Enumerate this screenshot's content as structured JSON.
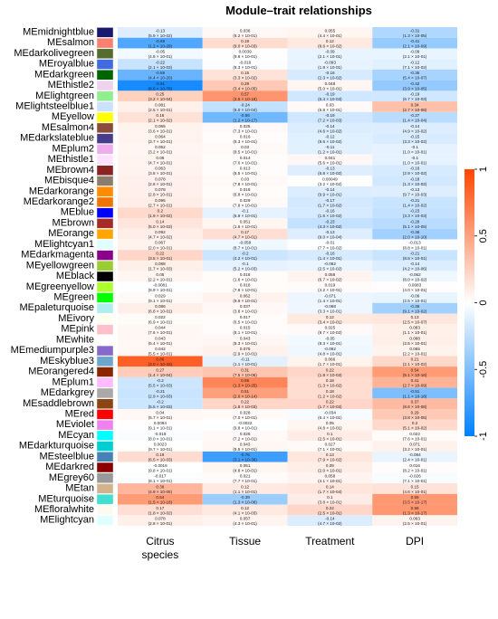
{
  "chart_data": {
    "type": "heatmap",
    "title": "Module–trait relationships",
    "traits": [
      "Citrus\nspecies",
      "Tissue",
      "Treatment",
      "DPI"
    ],
    "modules": [
      {
        "name": "MEmidnightblue",
        "color": "#191970",
        "values": [
          -0.13,
          0.036,
          0.055,
          -0.31
        ],
        "p": [
          "(5.9 × 10^-02)",
          "(6.2 × 10^-01)",
          "(4.4 × 10^-01)",
          "(1.3 × 10^-05)"
        ]
      },
      {
        "name": "MEsalmon",
        "color": "#FA8072",
        "values": [
          -0.69,
          0.19,
          0.12,
          -0.41
        ],
        "p": [
          "(1.2 × 10^-29)",
          "(9.0 × 10^-03)",
          "(8.6 × 10^-02)",
          "(2.1 × 10^-09)"
        ]
      },
      {
        "name": "MEdarkolivegreen",
        "color": "#556B2F",
        "values": [
          -0.05,
          0.0039,
          -0.09,
          -0.09
        ],
        "p": [
          "(4.8 × 10^-01)",
          "(9.6 × 10^-01)",
          "(2.1 × 10^-01)",
          "(2.1 × 10^-01)"
        ]
      },
      {
        "name": "MEroyalblue",
        "color": "#4169E1",
        "values": [
          -0.22,
          -0.016,
          -0.093,
          -0.12
        ],
        "p": [
          "(2.1 × 10^-03)",
          "(8.3 × 10^-01)",
          "(1.9 × 10^-01)",
          "(7.1 × 10^-02)"
        ]
      },
      {
        "name": "MEdarkgreen",
        "color": "#006400",
        "values": [
          -0.59,
          0.15,
          -0.16,
          -0.35
        ],
        "p": [
          "(4.4 × 10^-20)",
          "(3.3 × 10^-02)",
          "(2.3 × 10^-02)",
          "(5.4 × 10^-07)"
        ]
      },
      {
        "name": "MEthistle2",
        "color": "#EED2EE",
        "values": [
          -0.91,
          0.29,
          0.048,
          -0.42
        ],
        "p": [
          "(6.6 × 10^-78)",
          "(3.4 × 10^-05)",
          "(5.0 × 10^-01)",
          "(3.9 × 10^-05)"
        ]
      },
      {
        "name": "MElightgreen",
        "color": "#90EE90",
        "values": [
          0.25,
          0.57,
          -0.19,
          -0.19
        ],
        "p": [
          "(3.2 × 10^-04)",
          "(3.5 × 10^-18)",
          "(6.4 × 10^-03)",
          "(6.7 × 10^-03)"
        ]
      },
      {
        "name": "MElightsteelblue1",
        "color": "#CAE1FF",
        "values": [
          0.081,
          -0.24,
          0.03,
          0.34
        ],
        "p": [
          "(2.5 × 10^-01)",
          "(6.0 × 10^-04)",
          "(6.8 × 10^-01)",
          "(2.7 × 10^-08)"
        ]
      },
      {
        "name": "MEyellow",
        "color": "#FFFF00",
        "values": [
          0.16,
          -0.56,
          -0.19,
          -0.27
        ],
        "p": [
          "(2.1 × 10^-02)",
          "(1.2 × 10^-17)",
          "(7.2 × 10^-03)",
          "(1.4 × 10^-04)"
        ]
      },
      {
        "name": "MEsalmon4",
        "color": "#8B4C39",
        "values": [
          0.065,
          0.025,
          -0.14,
          -0.14
        ],
        "p": [
          "(3.6 × 10^-01)",
          "(7.3 × 10^-01)",
          "(4.6 × 10^-02)",
          "(4.9 × 10^-02)"
        ]
      },
      {
        "name": "MEdarkslateblue",
        "color": "#483D8B",
        "values": [
          0.064,
          0.016,
          -0.12,
          -0.15
        ],
        "p": [
          "(3.7 × 10^-01)",
          "(8.3 × 10^-01)",
          "(9.6 × 10^-02)",
          "(3.3 × 10^-02)"
        ]
      },
      {
        "name": "MEplum2",
        "color": "#EEAEEE",
        "values": [
          0.052,
          0.03,
          -0.11,
          -0.1
        ],
        "p": [
          "(3.2 × 10^-01)",
          "(8.5 × 10^-01)",
          "(1.2 × 10^-01)",
          "(1.0 × 10^-01)"
        ]
      },
      {
        "name": "MEthistle1",
        "color": "#FFE1FF",
        "values": [
          0.06,
          0.014,
          0.041,
          -0.1
        ],
        "p": [
          "(4.7 × 10^-01)",
          "(7.6 × 10^-01)",
          "(5.6 × 10^-01)",
          "(1.0 × 10^-01)"
        ]
      },
      {
        "name": "MEbrown4",
        "color": "#8B2323",
        "values": [
          0.063,
          0.013,
          -0.13,
          -0.16
        ],
        "p": [
          "(3.8 × 10^-01)",
          "(8.5 × 10^-01)",
          "(6.8 × 10^-02)",
          "(2.9 × 10^-02)"
        ]
      },
      {
        "name": "MEbisque4",
        "color": "#8B7D6B",
        "values": [
          0.078,
          0.03,
          0.00049,
          -0.18
        ],
        "p": [
          "(2.8 × 10^-01)",
          "(7.8 × 10^-01)",
          "(3.2 × 10^-02)",
          "(1.3 × 10^-02)"
        ]
      },
      {
        "name": "MEdarkorange",
        "color": "#FF8C00",
        "values": [
          0.078,
          0.018,
          -0.14,
          -0.13
        ],
        "p": [
          "(2.8 × 10^-01)",
          "(6.8 × 10^-01)",
          "(9.9 × 10^-01)",
          "(9.7 × 10^-03)"
        ]
      },
      {
        "name": "MEdarkorange2",
        "color": "#EE7600",
        "values": [
          0.095,
          0.029,
          -0.17,
          -0.21
        ],
        "p": [
          "(2.7 × 10^-01)",
          "(7.8 × 10^-01)",
          "(1.7 × 10^-02)",
          "(1.4 × 10^-02)"
        ]
      },
      {
        "name": "MEblue",
        "color": "#0000FF",
        "values": [
          0.2,
          -0.1,
          -0.16,
          -0.23
        ],
        "p": [
          "(1.9 × 10^-02)",
          "(6.9 × 10^-01)",
          "(1.5 × 10^-02)",
          "(3.3 × 10^-03)"
        ]
      },
      {
        "name": "MEbrown",
        "color": "#A52A2A",
        "values": [
          0.14,
          0.051,
          -0.23,
          -0.28
        ],
        "p": [
          "(5.0 × 10^-03)",
          "(1.6 × 10^-01)",
          "(4.3 × 10^-02)",
          "(5.1 × 10^-05)"
        ]
      },
      {
        "name": "MEorange",
        "color": "#FFA500",
        "values": [
          0.092,
          0.17,
          -0.13,
          -0.36
        ],
        "p": [
          "(4.7 × 10^-02)",
          "(4.7 × 10^-01)",
          "(9.0 × 10^-04)",
          "(2.0 × 10^-10)"
        ]
      },
      {
        "name": "MElightcyan1",
        "color": "#E0FFFF",
        "values": [
          0.067,
          -0.058,
          -0.01,
          -0.013
        ],
        "p": [
          "(2.0 × 10^-01)",
          "(8.7 × 10^-01)",
          "(7.7 × 10^-02)",
          "(8.8 × 10^-01)"
        ]
      },
      {
        "name": "MEdarkmagenta",
        "color": "#8B008B",
        "values": [
          0.22,
          -0.2,
          -0.16,
          -0.21
        ],
        "p": [
          "(3.5 × 10^-01)",
          "(4.2 × 10^-01)",
          "(1.4 × 10^-01)",
          "(8.5 × 10^-01)"
        ]
      },
      {
        "name": "MEyellowgreen",
        "color": "#9ACD32",
        "values": [
          0.088,
          -0.1,
          -0.082,
          -0.14
        ],
        "p": [
          "(1.7 × 10^-03)",
          "(5.2 × 10^-03)",
          "(2.5 × 10^-02)",
          "(4.2 × 10^-06)"
        ]
      },
      {
        "name": "MEblack",
        "color": "#000000",
        "values": [
          0.05,
          0.018,
          0.058,
          -0.062
        ],
        "p": [
          "(2.2 × 10^-01)",
          "(1.6 × 10^-01)",
          "(6.7 × 10^-02)",
          "(8.0 × 10^-02)"
        ]
      },
      {
        "name": "MEgreenyellow",
        "color": "#ADFF2F",
        "values": [
          -0.0081,
          0.018,
          0.019,
          0.0083
        ],
        "p": [
          "(8.9 × 10^-01)",
          "(7.8 × 10^-01)",
          "(4.2 × 10^-01)",
          "(4.0 × 10^-01)"
        ]
      },
      {
        "name": "MEgreen",
        "color": "#00FF00",
        "values": [
          0.029,
          0.062,
          -0.071,
          -0.09
        ],
        "p": [
          "(9.1 × 10^-01)",
          "(9.9 × 10^-01)",
          "(1.4 × 10^-01)",
          "(2.5 × 10^-01)"
        ]
      },
      {
        "name": "MEpaleturquoise",
        "color": "#AFEEEE",
        "values": [
          0.086,
          0.037,
          -0.068,
          -0.36
        ],
        "p": [
          "(6.8 × 10^-01)",
          "(3.8 × 10^-01)",
          "(3.3 × 10^-01)",
          "(9.1 × 10^-02)"
        ]
      },
      {
        "name": "MEivory",
        "color": "#FFFFF0",
        "values": [
          0.022,
          0.017,
          0.12,
          0.13
        ],
        "p": [
          "(6.9 × 10^-01)",
          "(6.5 × 10^-01)",
          "(3.4 × 10^-01)",
          "(2.5 × 10^-07)"
        ]
      },
      {
        "name": "MEpink",
        "color": "#FFC0CB",
        "values": [
          0.044,
          0.015,
          0.025,
          0.083
        ],
        "p": [
          "(7.6 × 10^-01)",
          "(8.1 × 10^-01)",
          "(9.7 × 10^-02)",
          "(1.1 × 10^-01)"
        ]
      },
      {
        "name": "MEwhite",
        "color": "#FFFFFF",
        "values": [
          0.043,
          0.043,
          -0.05,
          0.088
        ],
        "p": [
          "(5.4 × 10^-01)",
          "(8.3 × 10^-01)",
          "(8.3 × 10^-01)",
          "(2.5 × 10^-01)"
        ]
      },
      {
        "name": "MEmediumpurple3",
        "color": "#8968CD",
        "values": [
          0.042,
          0.075,
          -0.062,
          0.065
        ],
        "p": [
          "(5.5 × 10^-01)",
          "(2.9 × 10^-01)",
          "(4.8 × 10^-01)",
          "(2.2 × 10^-01)"
        ]
      },
      {
        "name": "MEskyblue3",
        "color": "#6CA6CD",
        "values": [
          0.86,
          -0.11,
          0.066,
          0.21
        ],
        "p": [
          "(3.0 × 10^-43)",
          "(1.1 × 10^-01)",
          "(1.7 × 10^-01)",
          "(2.1 × 10^-02)"
        ]
      },
      {
        "name": "MEorangered4",
        "color": "#8B2500",
        "values": [
          0.27,
          0.31,
          0.22,
          0.54
        ],
        "p": [
          "(1.4 × 10^-04)",
          "(7.5 × 10^-06)",
          "(1.9 × 10^-03)",
          "(5.1 × 10^-16)"
        ]
      },
      {
        "name": "MEplum1",
        "color": "#FFBBFF",
        "values": [
          -0.2,
          0.66,
          0.18,
          0.41
        ],
        "p": [
          "(5.5 × 10^-03)",
          "(1.3 × 10^-25)",
          "(1.3 × 10^-02)",
          "(2.7 × 10^-09)"
        ]
      },
      {
        "name": "MEdarkgrey",
        "color": "#A9A9A9",
        "values": [
          -0.21,
          0.51,
          0.18,
          -0.51
        ],
        "p": [
          "(2.9 × 10^-03)",
          "(2.0 × 10^-14)",
          "(1.2 × 10^-02)",
          "(1.1 × 10^-18)"
        ]
      },
      {
        "name": "MEsaddlebrown",
        "color": "#8B4513",
        "values": [
          -0.2,
          0.22,
          0.22,
          0.37
        ],
        "p": [
          "(5.5 × 10^-03)",
          "(1.8 × 10^-03)",
          "(1.7 × 10^-03)",
          "(8.6 × 10^-08)"
        ]
      },
      {
        "name": "MEred",
        "color": "#FF0000",
        "values": [
          0.04,
          0.028,
          -0.034,
          0.29
        ],
        "p": [
          "(5.7 × 10^-01)",
          "(7.0 × 10^-01)",
          "(6.4 × 10^-01)",
          "(3.8 × 10^-05)"
        ]
      },
      {
        "name": "MEviolet",
        "color": "#EE82EE",
        "values": [
          0.0094,
          -0.0022,
          0.05,
          0.2
        ],
        "p": [
          "(9.1 × 10^-01)",
          "(9.8 × 10^-01)",
          "(4.8 × 10^-01)",
          "(5.1 × 10^-02)"
        ]
      },
      {
        "name": "MEcyan",
        "color": "#00FFFF",
        "values": [
          -0.018,
          0.026,
          0.1,
          0.022
        ],
        "p": [
          "(8.0 × 10^-01)",
          "(7.2 × 10^-01)",
          "(2.5 × 10^-01)",
          "(7.6 × 10^-01)"
        ]
      },
      {
        "name": "MEdarkturquoise",
        "color": "#00CED1",
        "values": [
          0.0023,
          0.043,
          0.027,
          0.071
        ],
        "p": [
          "(9.7 × 10^-01)",
          "(5.5 × 10^-01)",
          "(7.1 × 10^-01)",
          "(3.2 × 10^-01)"
        ]
      },
      {
        "name": "MEsteelblue",
        "color": "#4682B4",
        "values": [
          0.19,
          -0.76,
          0.13,
          -0.084
        ],
        "p": [
          "(6.5 × 10^-03)",
          "(3.1 × 10^-38)",
          "(7.9 × 10^-02)",
          "(2.4 × 10^-01)"
        ]
      },
      {
        "name": "MEdarkred",
        "color": "#8B0000",
        "values": [
          -0.0016,
          0.051,
          0.09,
          0.016
        ],
        "p": [
          "(9.8 × 10^-01)",
          "(4.8 × 10^-01)",
          "(2.0 × 10^-01)",
          "(8.2 × 10^-01)"
        ]
      },
      {
        "name": "MEgrey60",
        "color": "#999999",
        "values": [
          -0.017,
          0.021,
          0.058,
          -0.026
        ],
        "p": [
          "(8.1 × 10^-01)",
          "(7.7 × 10^-01)",
          "(4.1 × 10^-01)",
          "(7.1 × 10^-01)"
        ]
      },
      {
        "name": "MEtan",
        "color": "#D2B48C",
        "values": [
          0.39,
          0.12,
          0.14,
          0.15
        ],
        "p": [
          "(4.9 × 10^-05)",
          "(1.1 × 10^-01)",
          "(1.7 × 10^-04)",
          "(4.6 × 10^-01)"
        ]
      },
      {
        "name": "MEturquoise",
        "color": "#40E0D0",
        "values": [
          0.54,
          -0.39,
          0.1,
          0.55
        ],
        "p": [
          "(1.5 × 10^-16)",
          "(1.3 × 10^-08)",
          "(3.8 × 10^-01)",
          "(3.5 × 10^-17)"
        ]
      },
      {
        "name": "MEfloralwhite",
        "color": "#FFFAF0",
        "values": [
          0.17,
          0.12,
          0.22,
          0.56
        ],
        "p": [
          "(1.8 × 10^-02)",
          "(4.1 × 10^-03)",
          "(2.5 × 10^-01)",
          "(1.3 × 10^-17)"
        ]
      },
      {
        "name": "MElightcyan",
        "color": "#E0FFFF",
        "values": [
          0.078,
          0.057,
          -0.14,
          0.063
        ],
        "p": [
          "(2.8 × 10^-01)",
          "(4.3 × 10^-01)",
          "(4.7 × 10^-02)",
          "(2.5 × 10^-01)"
        ]
      }
    ],
    "colorbar": {
      "ticks": [
        1,
        0.5,
        0,
        -0.5,
        -1
      ],
      "range": [
        -1,
        1
      ],
      "low_color": "#0080FF",
      "mid_color": "#FFFFFF",
      "high_color": "#FF4500"
    }
  }
}
